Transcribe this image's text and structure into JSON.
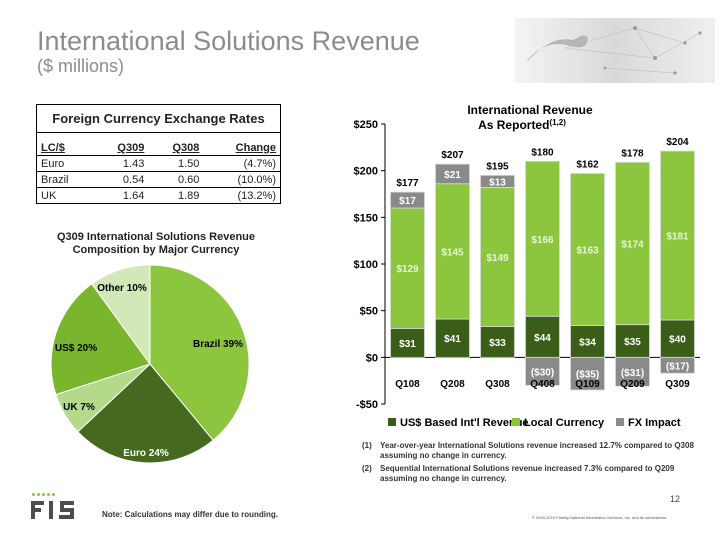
{
  "slide": {
    "title": "International Solutions Revenue",
    "subtitle": "($ millions)",
    "note": "Note: Calculations may differ due to rounding.",
    "page_number": "12",
    "copyright": "© 2009-2010 Fidelity National Information Services, Inc. and its subsidiaries.",
    "logo_text": "FIS"
  },
  "fx_table": {
    "caption": "Foreign Currency Exchange Rates",
    "headers": [
      "LC/$",
      "Q309",
      "Q308",
      "Change"
    ],
    "rows": [
      [
        "Euro",
        "1.43",
        "1.50",
        "(4.7%)"
      ],
      [
        "Brazil",
        "0.54",
        "0.60",
        "(10.0%)"
      ],
      [
        "UK",
        "1.64",
        "1.89",
        "(13.2%)"
      ]
    ]
  },
  "footnotes": [
    {
      "num": "(1)",
      "text": "Year-over-year International Solutions revenue increased 12.7% compared to Q308 assuming no change in currency."
    },
    {
      "num": "(2)",
      "text": "Sequential International Solutions revenue increased 7.3% compared to Q209 assuming no change in currency."
    }
  ],
  "colors": {
    "usd": "#3a5e18",
    "local": "#8cc63f",
    "fx": "#8a8a8a",
    "pie": [
      "#8cc63f",
      "#45691f",
      "#b3d98a",
      "#7ab52e",
      "#d3e8b8"
    ]
  },
  "chart_data": [
    {
      "type": "pie",
      "title": "Q309 International Solutions Revenue Composition by Major Currency",
      "slices": [
        {
          "label": "Brazil 39%",
          "value": 39
        },
        {
          "label": "Euro 24%",
          "value": 24
        },
        {
          "label": "UK 7%",
          "value": 7
        },
        {
          "label": "US$ 20%",
          "value": 20
        },
        {
          "label": "Other 10%",
          "value": 10
        }
      ]
    },
    {
      "type": "bar",
      "title": "International Revenue",
      "title_line2": "As Reported",
      "title_sup": "(1,2)",
      "categories": [
        "Q108",
        "Q208",
        "Q308",
        "Q408",
        "Q109",
        "Q209",
        "Q309"
      ],
      "series": [
        {
          "name": "US$ Based Int'l Revenue",
          "values": [
            31,
            41,
            33,
            44,
            34,
            35,
            40
          ],
          "labels": [
            "$31",
            "$41",
            "$33",
            "$44",
            "$34",
            "$35",
            "$40"
          ]
        },
        {
          "name": "Local Currency",
          "values": [
            129,
            145,
            149,
            166,
            163,
            174,
            181
          ],
          "labels": [
            "$129",
            "$145",
            "$149",
            "$166",
            "$163",
            "$174",
            "$181"
          ]
        },
        {
          "name": "FX Impact",
          "values": [
            17,
            21,
            13,
            -30,
            -35,
            -31,
            -17
          ],
          "labels": [
            "$17",
            "$21",
            "$13",
            "($30)",
            "($35)",
            "($31)",
            "($17)"
          ]
        }
      ],
      "totals": [
        177,
        207,
        195,
        180,
        162,
        178,
        204
      ],
      "total_labels": [
        "$177",
        "$207",
        "$195",
        "$180",
        "$162",
        "$178",
        "$204"
      ],
      "ylim": [
        -50,
        250
      ],
      "yticks": [
        -50,
        0,
        50,
        100,
        150,
        200,
        250
      ],
      "ytick_labels": [
        "-$50",
        "$0",
        "$50",
        "$100",
        "$150",
        "$200",
        "$250"
      ],
      "legend_position": "bottom",
      "grid": false
    }
  ]
}
